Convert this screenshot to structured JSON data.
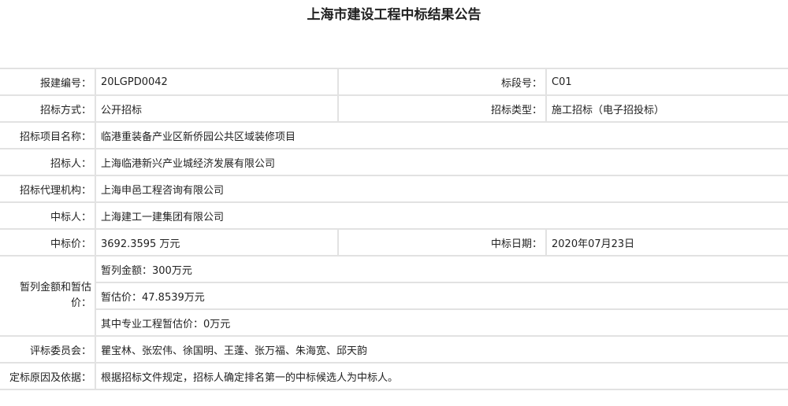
{
  "title": "上海市建设工程中标结果公告",
  "rows": {
    "project_no": {
      "label": "报建编号：",
      "value": "20LGPD0042"
    },
    "section_no": {
      "label": "标段号：",
      "value": "C01"
    },
    "method": {
      "label": "招标方式：",
      "value": "公开招标"
    },
    "type": {
      "label": "招标类型：",
      "value": "施工招标（电子招投标）"
    },
    "project_name": {
      "label": "招标项目名称：",
      "value": "临港重装备产业区新侨园公共区域装修项目"
    },
    "tenderer": {
      "label": "招标人：",
      "value": "上海临港新兴产业城经济发展有限公司"
    },
    "agency": {
      "label": "招标代理机构：",
      "value": "上海申邑工程咨询有限公司"
    },
    "winner": {
      "label": "中标人：",
      "value": "上海建工一建集团有限公司"
    },
    "price": {
      "label": "中标价：",
      "value": "3692.3595 万元"
    },
    "date": {
      "label": "中标日期：",
      "value": "2020年07月23日"
    },
    "provisional": {
      "label": "暂列金额和暂估价：",
      "items": [
        "暂列金额：300万元",
        "暂估价：47.8539万元",
        "其中专业工程暂估价：0万元"
      ]
    },
    "committee": {
      "label": "评标委员会：",
      "value": "瞿宝林、张宏伟、徐国明、王蓬、张万福、朱海宽、邱天韵"
    },
    "reason": {
      "label": "定标原因及依据：",
      "value": "根据招标文件规定，招标人确定排名第一的中标候选人为中标人。"
    }
  }
}
